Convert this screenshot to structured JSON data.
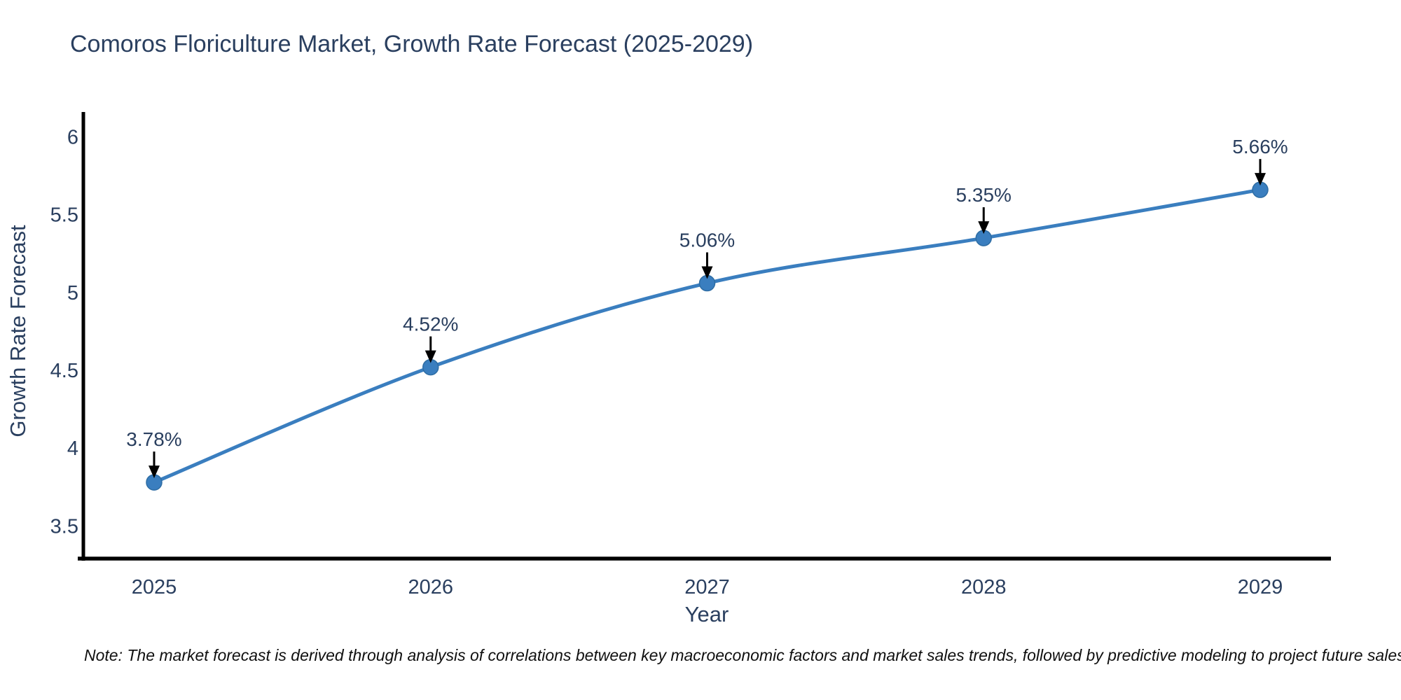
{
  "chart_data": {
    "type": "line",
    "title": "Comoros Floriculture Market, Growth Rate Forecast (2025-2029)",
    "xlabel": "Year",
    "ylabel": "Growth Rate Forecast",
    "categories": [
      "2025",
      "2026",
      "2027",
      "2028",
      "2029"
    ],
    "series": [
      {
        "name": "Growth Rate Forecast",
        "values": [
          3.78,
          4.52,
          5.06,
          5.35,
          5.66
        ],
        "point_labels": [
          "3.78%",
          "4.52%",
          "5.06%",
          "5.35%",
          "5.66%"
        ]
      }
    ],
    "yticks": [
      3.5,
      4,
      4.5,
      5,
      5.5,
      6
    ],
    "ylim": [
      3.29,
      6.16
    ],
    "grid": false,
    "legend": "none",
    "line_shape": "spline",
    "colors": {
      "line": "#3a7ebf",
      "marker": "#3a7ebf",
      "marker_edge": "#2e6da4",
      "axis": "#000000",
      "tick_text": "#2a3f5f",
      "title_text": "#2a3f5f",
      "annotation_text": "#2a3f5f",
      "annotation_arrow": "#000000"
    }
  },
  "footer": {
    "note": "Note: The market forecast is derived through analysis of correlations between key macroeconomic factors and market sales trends, followed by predictive modeling to project future sales"
  }
}
